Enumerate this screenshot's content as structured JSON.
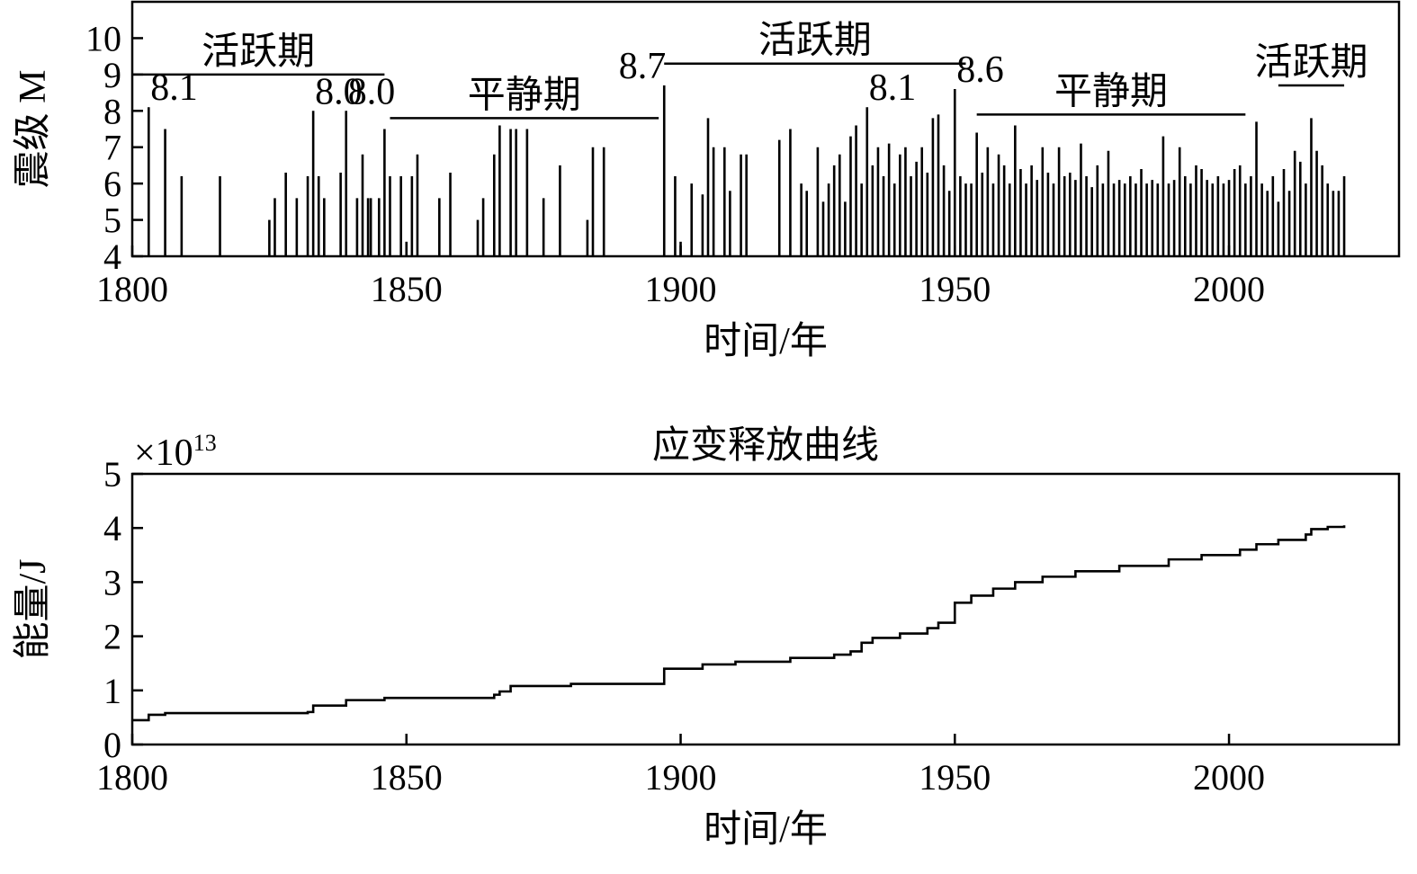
{
  "chart_data": [
    {
      "type": "bar",
      "title": "",
      "xlabel": "时间/年",
      "ylabel": "震级 M",
      "xlim": [
        1800,
        2031
      ],
      "ylim": [
        4,
        11
      ],
      "xticks": [
        "1800",
        "1850",
        "1900",
        "1950",
        "2000"
      ],
      "yticks": [
        "4",
        "5",
        "6",
        "7",
        "8",
        "9",
        "10"
      ],
      "grid": false,
      "periods": [
        {
          "label": "活跃期",
          "x_start": 1800,
          "x_end": 1846,
          "y": 9.0
        },
        {
          "label": "平静期",
          "x_start": 1847,
          "x_end": 1896,
          "y": 7.8
        },
        {
          "label": "活跃期",
          "x_start": 1897,
          "x_end": 1952,
          "y": 9.3
        },
        {
          "label": "平静期",
          "x_start": 1954,
          "x_end": 2003,
          "y": 7.9
        },
        {
          "label": "活跃期",
          "x_start": 2009,
          "x_end": 2021,
          "y": 8.7
        }
      ],
      "annotations": [
        {
          "text": "8.1",
          "x": 1803,
          "y": 8.1
        },
        {
          "text": "8.0",
          "x": 1833,
          "y": 8.0
        },
        {
          "text": "8.0",
          "x": 1839,
          "y": 8.0
        },
        {
          "text": "8.7",
          "x": 1897,
          "y": 8.7
        },
        {
          "text": "8.1",
          "x": 1934,
          "y": 8.1
        },
        {
          "text": "8.6",
          "x": 1950,
          "y": 8.6
        }
      ],
      "events": [
        {
          "x": 1803,
          "y": 8.1
        },
        {
          "x": 1806,
          "y": 7.5
        },
        {
          "x": 1809,
          "y": 6.2
        },
        {
          "x": 1816,
          "y": 6.2
        },
        {
          "x": 1825,
          "y": 5.0
        },
        {
          "x": 1826,
          "y": 5.6
        },
        {
          "x": 1828,
          "y": 6.3
        },
        {
          "x": 1830,
          "y": 5.6
        },
        {
          "x": 1832,
          "y": 6.2
        },
        {
          "x": 1833,
          "y": 8.0
        },
        {
          "x": 1834,
          "y": 6.2
        },
        {
          "x": 1835,
          "y": 5.6
        },
        {
          "x": 1838,
          "y": 6.3
        },
        {
          "x": 1839,
          "y": 8.0
        },
        {
          "x": 1841,
          "y": 5.6
        },
        {
          "x": 1842,
          "y": 6.8
        },
        {
          "x": 1843,
          "y": 5.6
        },
        {
          "x": 1843.5,
          "y": 5.6
        },
        {
          "x": 1845,
          "y": 5.6
        },
        {
          "x": 1846,
          "y": 7.5
        },
        {
          "x": 1847,
          "y": 6.2
        },
        {
          "x": 1849,
          "y": 6.2
        },
        {
          "x": 1850,
          "y": 4.4
        },
        {
          "x": 1851,
          "y": 6.2
        },
        {
          "x": 1852,
          "y": 6.8
        },
        {
          "x": 1856,
          "y": 5.6
        },
        {
          "x": 1858,
          "y": 6.3
        },
        {
          "x": 1863,
          "y": 5.0
        },
        {
          "x": 1864,
          "y": 5.6
        },
        {
          "x": 1866,
          "y": 6.8
        },
        {
          "x": 1867,
          "y": 7.6
        },
        {
          "x": 1869,
          "y": 7.5
        },
        {
          "x": 1870,
          "y": 7.5
        },
        {
          "x": 1872,
          "y": 7.5
        },
        {
          "x": 1875,
          "y": 5.6
        },
        {
          "x": 1878,
          "y": 6.5
        },
        {
          "x": 1883,
          "y": 5.0
        },
        {
          "x": 1884,
          "y": 7.0
        },
        {
          "x": 1886,
          "y": 7.0
        },
        {
          "x": 1897,
          "y": 8.7
        },
        {
          "x": 1899,
          "y": 6.2
        },
        {
          "x": 1900,
          "y": 4.4
        },
        {
          "x": 1902,
          "y": 6.0
        },
        {
          "x": 1904,
          "y": 5.7
        },
        {
          "x": 1905,
          "y": 7.8
        },
        {
          "x": 1906,
          "y": 7.0
        },
        {
          "x": 1908,
          "y": 7.0
        },
        {
          "x": 1909,
          "y": 5.8
        },
        {
          "x": 1911,
          "y": 6.8
        },
        {
          "x": 1912,
          "y": 6.8
        },
        {
          "x": 1918,
          "y": 7.2
        },
        {
          "x": 1920,
          "y": 7.5
        },
        {
          "x": 1922,
          "y": 6.0
        },
        {
          "x": 1923,
          "y": 5.8
        },
        {
          "x": 1925,
          "y": 7.0
        },
        {
          "x": 1926,
          "y": 5.5
        },
        {
          "x": 1927,
          "y": 6.0
        },
        {
          "x": 1928,
          "y": 6.5
        },
        {
          "x": 1929,
          "y": 6.8
        },
        {
          "x": 1930,
          "y": 5.5
        },
        {
          "x": 1931,
          "y": 7.3
        },
        {
          "x": 1932,
          "y": 7.6
        },
        {
          "x": 1933,
          "y": 6.0
        },
        {
          "x": 1934,
          "y": 8.1
        },
        {
          "x": 1935,
          "y": 6.5
        },
        {
          "x": 1936,
          "y": 7.0
        },
        {
          "x": 1937,
          "y": 6.2
        },
        {
          "x": 1938,
          "y": 7.1
        },
        {
          "x": 1939,
          "y": 6.0
        },
        {
          "x": 1940,
          "y": 6.8
        },
        {
          "x": 1941,
          "y": 7.0
        },
        {
          "x": 1942,
          "y": 6.2
        },
        {
          "x": 1943,
          "y": 6.6
        },
        {
          "x": 1944,
          "y": 7.0
        },
        {
          "x": 1945,
          "y": 6.3
        },
        {
          "x": 1946,
          "y": 7.8
        },
        {
          "x": 1947,
          "y": 7.9
        },
        {
          "x": 1948,
          "y": 6.5
        },
        {
          "x": 1949,
          "y": 5.8
        },
        {
          "x": 1950,
          "y": 8.6
        },
        {
          "x": 1951,
          "y": 6.2
        },
        {
          "x": 1952,
          "y": 6.0
        },
        {
          "x": 1953,
          "y": 6.0
        },
        {
          "x": 1954,
          "y": 7.4
        },
        {
          "x": 1955,
          "y": 6.3
        },
        {
          "x": 1956,
          "y": 7.0
        },
        {
          "x": 1957,
          "y": 6.0
        },
        {
          "x": 1958,
          "y": 6.8
        },
        {
          "x": 1959,
          "y": 6.5
        },
        {
          "x": 1960,
          "y": 6.0
        },
        {
          "x": 1961,
          "y": 7.6
        },
        {
          "x": 1962,
          "y": 6.4
        },
        {
          "x": 1963,
          "y": 6.0
        },
        {
          "x": 1964,
          "y": 6.5
        },
        {
          "x": 1965,
          "y": 6.1
        },
        {
          "x": 1966,
          "y": 7.0
        },
        {
          "x": 1967,
          "y": 6.3
        },
        {
          "x": 1968,
          "y": 6.0
        },
        {
          "x": 1969,
          "y": 7.0
        },
        {
          "x": 1970,
          "y": 6.2
        },
        {
          "x": 1971,
          "y": 6.3
        },
        {
          "x": 1972,
          "y": 6.1
        },
        {
          "x": 1973,
          "y": 7.1
        },
        {
          "x": 1974,
          "y": 6.2
        },
        {
          "x": 1975,
          "y": 5.9
        },
        {
          "x": 1976,
          "y": 6.5
        },
        {
          "x": 1977,
          "y": 6.0
        },
        {
          "x": 1978,
          "y": 6.9
        },
        {
          "x": 1979,
          "y": 6.0
        },
        {
          "x": 1980,
          "y": 6.1
        },
        {
          "x": 1981,
          "y": 6.0
        },
        {
          "x": 1982,
          "y": 6.2
        },
        {
          "x": 1983,
          "y": 6.0
        },
        {
          "x": 1984,
          "y": 6.4
        },
        {
          "x": 1985,
          "y": 6.0
        },
        {
          "x": 1986,
          "y": 6.1
        },
        {
          "x": 1987,
          "y": 6.0
        },
        {
          "x": 1988,
          "y": 7.3
        },
        {
          "x": 1989,
          "y": 6.0
        },
        {
          "x": 1990,
          "y": 6.1
        },
        {
          "x": 1991,
          "y": 7.0
        },
        {
          "x": 1992,
          "y": 6.2
        },
        {
          "x": 1993,
          "y": 6.0
        },
        {
          "x": 1994,
          "y": 6.5
        },
        {
          "x": 1995,
          "y": 6.4
        },
        {
          "x": 1996,
          "y": 6.1
        },
        {
          "x": 1997,
          "y": 6.0
        },
        {
          "x": 1998,
          "y": 6.2
        },
        {
          "x": 1999,
          "y": 6.0
        },
        {
          "x": 2000,
          "y": 6.1
        },
        {
          "x": 2001,
          "y": 6.4
        },
        {
          "x": 2002,
          "y": 6.5
        },
        {
          "x": 2003,
          "y": 6.0
        },
        {
          "x": 2004,
          "y": 6.2
        },
        {
          "x": 2005,
          "y": 7.7
        },
        {
          "x": 2006,
          "y": 6.0
        },
        {
          "x": 2007,
          "y": 5.8
        },
        {
          "x": 2008,
          "y": 6.2
        },
        {
          "x": 2009,
          "y": 5.5
        },
        {
          "x": 2010,
          "y": 6.4
        },
        {
          "x": 2011,
          "y": 5.8
        },
        {
          "x": 2012,
          "y": 6.9
        },
        {
          "x": 2013,
          "y": 6.6
        },
        {
          "x": 2014,
          "y": 6.0
        },
        {
          "x": 2015,
          "y": 7.8
        },
        {
          "x": 2016,
          "y": 6.9
        },
        {
          "x": 2017,
          "y": 6.5
        },
        {
          "x": 2018,
          "y": 6.0
        },
        {
          "x": 2019,
          "y": 5.8
        },
        {
          "x": 2020,
          "y": 5.8
        },
        {
          "x": 2021,
          "y": 6.2
        }
      ]
    },
    {
      "type": "line",
      "title": "应变释放曲线",
      "xlabel": "时间/年",
      "ylabel": "能量/J",
      "y_multiplier_base": "×10",
      "y_multiplier_exp": "13",
      "xlim": [
        1800,
        2031
      ],
      "ylim": [
        0,
        5
      ],
      "xticks": [
        "1800",
        "1850",
        "1900",
        "1950",
        "2000"
      ],
      "yticks": [
        "0",
        "1",
        "2",
        "3",
        "4",
        "5"
      ],
      "grid": false,
      "step": true,
      "x": [
        1800,
        1803,
        1806,
        1832,
        1833,
        1839,
        1846,
        1866,
        1867,
        1869,
        1880,
        1897,
        1904,
        1910,
        1920,
        1928,
        1931,
        1933,
        1935,
        1940,
        1945,
        1947,
        1948,
        1950,
        1953,
        1957,
        1961,
        1966,
        1972,
        1980,
        1989,
        1995,
        2002,
        2005,
        2009,
        2014,
        2015,
        2018,
        2021
      ],
      "y": [
        0.45,
        0.55,
        0.58,
        0.6,
        0.72,
        0.82,
        0.86,
        0.92,
        0.98,
        1.08,
        1.12,
        1.4,
        1.48,
        1.53,
        1.6,
        1.66,
        1.72,
        1.88,
        1.97,
        2.05,
        2.15,
        2.25,
        2.25,
        2.62,
        2.75,
        2.88,
        3.0,
        3.1,
        3.2,
        3.3,
        3.42,
        3.5,
        3.6,
        3.7,
        3.78,
        3.88,
        3.98,
        4.02,
        4.05
      ]
    }
  ]
}
